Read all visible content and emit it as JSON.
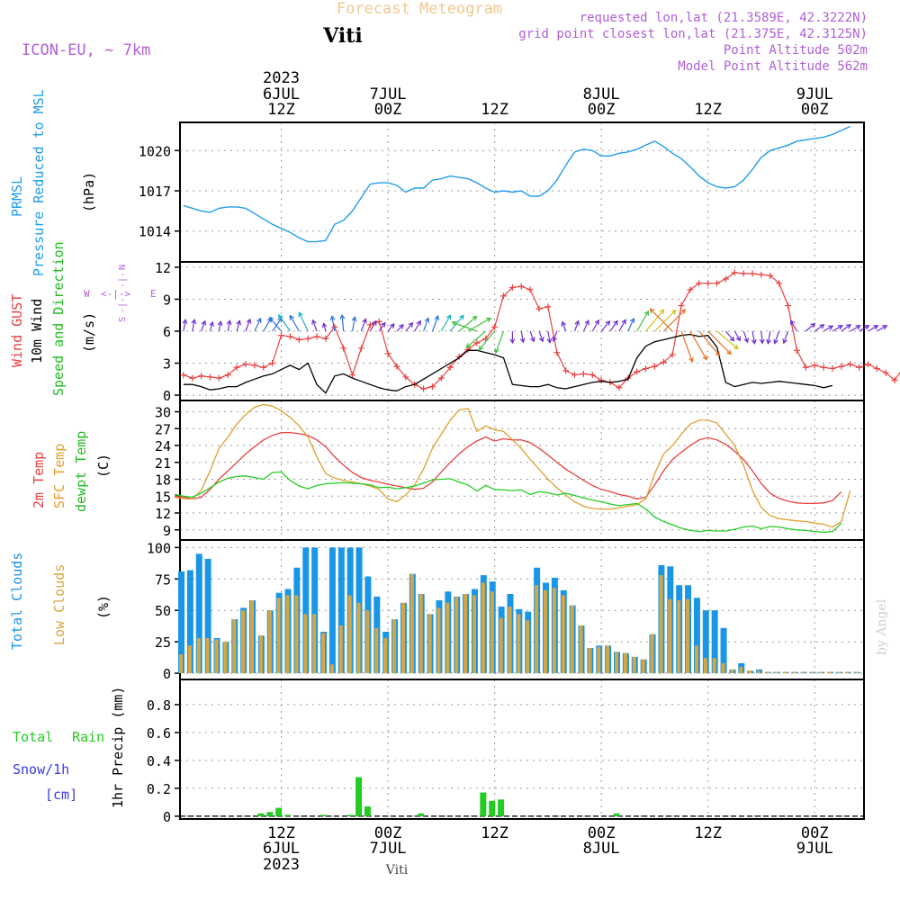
{
  "header": {
    "title": "Forecast Meteogram",
    "location": "Viti",
    "model": "ICON-EU, ~ 7km",
    "requested": "requested lon,lat (21.3589E, 42.3222N)",
    "gridpoint": "grid point closest lon,lat (21.375E, 42.3125N)",
    "point_alt": "Point Altitude 502m",
    "model_alt": "Model Point Altitude 562m",
    "watermark": "by Angel",
    "footer_location": "Viti"
  },
  "time_axis": {
    "top_year": "2023",
    "ticks": [
      {
        "hour": 12,
        "top": "6JUL",
        "label": "12Z"
      },
      {
        "hour": 24,
        "top": "7JUL",
        "label": "00Z"
      },
      {
        "hour": 36,
        "top": "",
        "label": "12Z"
      },
      {
        "hour": 48,
        "top": "8JUL",
        "label": "00Z"
      },
      {
        "hour": 60,
        "top": "",
        "label": "12Z"
      },
      {
        "hour": 72,
        "top": "9JUL",
        "label": "00Z"
      }
    ],
    "bottom_ticks": [
      {
        "hour": 12,
        "label": "12Z",
        "date": "6JUL",
        "year": "2023"
      },
      {
        "hour": 24,
        "label": "00Z",
        "date": "7JUL",
        "year": ""
      },
      {
        "hour": 36,
        "label": "12Z",
        "date": "",
        "year": ""
      },
      {
        "hour": 48,
        "label": "00Z",
        "date": "8JUL",
        "year": ""
      },
      {
        "hour": 60,
        "label": "12Z",
        "date": "",
        "year": ""
      },
      {
        "hour": 72,
        "label": "00Z",
        "date": "9JUL",
        "year": ""
      }
    ]
  },
  "colors": {
    "pressure": "#1f9ee8",
    "gust": "#e84040",
    "wind": "#000000",
    "wind_dir_label": "#22bb22",
    "temp2m": "#e84040",
    "sfc": "#e0a030",
    "dewpt": "#22cc22",
    "total_cloud": "#1a96e6",
    "low_cloud": "#d8a640",
    "rain": "#22cc22",
    "snow": "#3a3ae0",
    "header_purple": "#b060d8",
    "title_gold": "#f0c890"
  },
  "chart_data": [
    {
      "type": "line",
      "panel": "pressure",
      "title": "PRMSL Pressure Reduced to MSL",
      "ylabel": "(hPa)",
      "ylabel_lines": [
        "PRMSL",
        "Pressure Reduced to MSL"
      ],
      "unit": "(hPa)",
      "ylim": [
        1011.7,
        1022.1
      ],
      "yticks": [
        1014,
        1017,
        1020
      ],
      "x_start": 1,
      "x_step": 1,
      "series": [
        {
          "name": "PRMSL",
          "values": [
            1015.9,
            1015.7,
            1015.5,
            1015.4,
            1015.7,
            1015.8,
            1015.8,
            1015.7,
            1015.3,
            1014.9,
            1014.5,
            1014.2,
            1013.9,
            1013.5,
            1013.2,
            1013.2,
            1013.3,
            1014.5,
            1014.8,
            1015.5,
            1016.5,
            1017.5,
            1017.6,
            1017.6,
            1017.4,
            1016.9,
            1017.2,
            1017.2,
            1017.8,
            1017.9,
            1018.1,
            1018.0,
            1017.9,
            1017.6,
            1017.2,
            1016.9,
            1017.0,
            1016.9,
            1017.0,
            1016.6,
            1016.6,
            1017.0,
            1017.8,
            1018.9,
            1019.9,
            1020.1,
            1020.0,
            1019.6,
            1019.6,
            1019.8,
            1019.9,
            1020.1,
            1020.4,
            1020.7,
            1020.3,
            1019.8,
            1019.4,
            1018.8,
            1018.1,
            1017.6,
            1017.3,
            1017.2,
            1017.3,
            1017.8,
            1018.6,
            1019.5,
            1020.0,
            1020.2,
            1020.4,
            1020.7,
            1020.8,
            1020.9,
            1021.0,
            1021.2,
            1021.5,
            1021.8
          ]
        }
      ]
    },
    {
      "type": "line",
      "panel": "wind",
      "title": "Wind GUST / 10m Wind Speed and Direction",
      "ylabel": "(m/s)",
      "ylabel_lines": [
        "Wind GUST",
        "10m Wind",
        "Speed and Direction"
      ],
      "unit": "(m/s)",
      "compass": {
        "n": "N",
        "s": "S",
        "w": "W",
        "e": "E",
        "arrow_h": "<-|->",
        "arrow_v": "-|-"
      },
      "ylim": [
        -0.5,
        12.5
      ],
      "yticks": [
        0,
        3,
        6,
        9,
        12
      ],
      "x_start": 1,
      "x_step": 1,
      "series": [
        {
          "name": "Wind GUST",
          "values": [
            1.9,
            1.6,
            1.8,
            1.7,
            1.6,
            1.9,
            2.6,
            2.9,
            2.8,
            2.6,
            3.0,
            5.6,
            5.5,
            5.2,
            5.3,
            5.5,
            5.3,
            6.4,
            4.4,
            1.9,
            4.4,
            6.6,
            6.9,
            3.9,
            2.7,
            1.7,
            1.0,
            0.6,
            0.8,
            1.6,
            2.6,
            3.6,
            4.3,
            4.9,
            5.3,
            6.4,
            9.3,
            10.1,
            10.2,
            9.9,
            8.1,
            8.3,
            4.0,
            2.3,
            1.9,
            2.0,
            1.9,
            1.4,
            1.2,
            0.7,
            1.6,
            2.2,
            2.5,
            2.7,
            3.1,
            3.8,
            8.4,
            9.9,
            10.5,
            10.5,
            10.5,
            10.9,
            11.5,
            11.4,
            11.4,
            11.3,
            11.2,
            10.5,
            8.4,
            4.2,
            2.6,
            2.8,
            2.6,
            2.5,
            2.7,
            2.9,
            2.6,
            2.9,
            2.5,
            2.1,
            1.4,
            2.6
          ]
        },
        {
          "name": "10m Wind",
          "values": [
            1.0,
            1.0,
            0.8,
            0.5,
            0.6,
            0.8,
            0.8,
            1.2,
            1.5,
            1.8,
            2.0,
            2.4,
            2.8,
            2.4,
            3.0,
            1.0,
            0.2,
            1.8,
            2.0,
            1.6,
            1.3,
            1.0,
            0.7,
            0.5,
            0.4,
            0.8,
            1.0,
            1.5,
            2.0,
            2.5,
            3.0,
            3.5,
            4.2,
            4.2,
            4.0,
            3.8,
            3.5,
            1.0,
            0.9,
            0.8,
            0.8,
            1.0,
            0.7,
            0.6,
            0.8,
            1.0,
            1.2,
            1.3,
            1.2,
            1.3,
            1.5,
            3.5,
            4.6,
            5.0,
            5.2,
            5.4,
            5.6,
            5.7,
            5.5,
            5.6,
            4.5,
            1.2,
            0.8,
            1.0,
            1.2,
            1.1,
            1.2,
            1.3,
            1.2,
            1.1,
            1.0,
            0.9,
            0.7,
            0.9
          ]
        },
        {
          "name": "10m Wind direction (deg toward, 0=N)",
          "values": [
            10,
            10,
            20,
            15,
            10,
            10,
            15,
            20,
            25,
            30,
            35,
            320,
            325,
            330,
            335,
            340,
            345,
            350,
            355,
            10,
            20,
            30,
            35,
            40,
            45,
            40,
            30,
            20,
            20,
            30,
            40,
            50,
            60,
            290,
            230,
            220,
            200,
            180,
            170,
            160,
            160,
            170,
            200,
            340,
            20,
            25,
            30,
            40,
            35,
            30,
            25,
            30,
            40,
            45,
            45,
            315,
            160,
            150,
            140,
            135,
            130,
            140,
            150,
            160,
            170,
            175,
            190,
            200,
            200,
            330,
            50,
            55,
            60,
            60,
            55,
            60,
            60,
            60,
            60
          ]
        }
      ]
    },
    {
      "type": "line",
      "panel": "temperature",
      "title": "2m Temp / SFC Temp / dewpt Temp",
      "ylabel": "(C)",
      "ylabel_lines": [
        "2m Temp",
        "SFC Temp",
        "dewpt Temp"
      ],
      "unit": "(C)",
      "ylim": [
        7.2,
        32.0
      ],
      "yticks": [
        9,
        12,
        15,
        18,
        21,
        24,
        27,
        30
      ],
      "x_start": 0,
      "x_step": 1,
      "series": [
        {
          "name": "2m Temp",
          "values": [
            15.0,
            14.8,
            14.5,
            14.8,
            16.2,
            18.0,
            19.5,
            21.0,
            22.5,
            23.8,
            25.0,
            25.8,
            26.3,
            26.3,
            26.1,
            25.8,
            25.0,
            23.8,
            22.0,
            20.5,
            19.2,
            18.3,
            17.8,
            17.5,
            17.1,
            16.8,
            16.5,
            16.2,
            16.4,
            17.5,
            19.3,
            21.0,
            22.5,
            23.8,
            24.8,
            25.5,
            24.8,
            25.2,
            25.0,
            25.0,
            24.5,
            23.5,
            22.3,
            21.0,
            19.8,
            18.8,
            17.8,
            16.9,
            16.2,
            15.8,
            15.3,
            15.0,
            14.5,
            14.8,
            17.0,
            19.5,
            21.5,
            22.8,
            24.0,
            25.0,
            25.4,
            25.0,
            24.2,
            23.0,
            21.5,
            19.5,
            17.2,
            15.5,
            14.6,
            14.1,
            13.8,
            13.7,
            13.7,
            13.8,
            14.2,
            15.8
          ]
        },
        {
          "name": "SFC Temp",
          "values": [
            14.8,
            14.5,
            14.5,
            16.0,
            19.5,
            23.5,
            25.5,
            27.8,
            29.5,
            30.8,
            31.3,
            31.0,
            30.2,
            29.0,
            27.5,
            25.5,
            22.0,
            19.0,
            18.2,
            17.8,
            17.5,
            17.2,
            16.8,
            16.2,
            14.5,
            14.0,
            15.2,
            17.0,
            19.8,
            23.5,
            26.0,
            28.5,
            30.3,
            30.6,
            26.5,
            27.5,
            26.8,
            26.5,
            25.0,
            23.5,
            21.5,
            19.8,
            18.0,
            16.5,
            15.2,
            14.0,
            13.2,
            12.8,
            12.7,
            12.7,
            12.9,
            13.2,
            13.5,
            14.5,
            19.0,
            22.5,
            24.0,
            26.0,
            27.8,
            28.5,
            28.5,
            28.0,
            26.0,
            24.0,
            20.5,
            16.0,
            13.0,
            11.5,
            11.0,
            10.8,
            10.6,
            10.5,
            10.2,
            10.0,
            9.5,
            10.5,
            16.0
          ]
        },
        {
          "name": "dewpt Temp",
          "values": [
            15.3,
            15.0,
            14.8,
            15.5,
            16.5,
            17.5,
            18.2,
            18.5,
            18.6,
            18.3,
            18.0,
            19.2,
            19.3,
            17.8,
            16.8,
            16.3,
            16.9,
            17.2,
            17.3,
            17.4,
            17.3,
            17.2,
            17.0,
            16.5,
            16.6,
            16.3,
            16.5,
            16.8,
            17.3,
            17.9,
            18.0,
            18.1,
            17.5,
            17.0,
            15.9,
            16.9,
            16.2,
            16.1,
            16.0,
            16.1,
            15.3,
            15.8,
            15.6,
            15.2,
            15.5,
            15.1,
            14.7,
            14.3,
            14.0,
            13.6,
            13.3,
            13.5,
            13.7,
            12.7,
            11.3,
            10.5,
            9.9,
            9.3,
            8.9,
            8.7,
            8.9,
            8.8,
            8.8,
            9.1,
            9.5,
            9.7,
            9.2,
            9.6,
            9.5,
            9.2,
            9.0,
            8.9,
            8.7,
            8.6,
            8.7,
            10.2
          ]
        }
      ]
    },
    {
      "type": "bar",
      "panel": "clouds",
      "title": "Total Clouds / Low Clouds",
      "ylabel": "(%)",
      "ylabel_lines": [
        "Total Clouds",
        "Low Clouds"
      ],
      "unit": "(%)",
      "ylim": [
        -5,
        106
      ],
      "yticks": [
        0,
        25,
        50,
        75,
        100
      ],
      "x_start": 0,
      "x_step": 1,
      "series": [
        {
          "name": "Total Clouds",
          "values": [
            81,
            82,
            95,
            91,
            28,
            25,
            43,
            52,
            58,
            30,
            50,
            64,
            67,
            84,
            100,
            100,
            33,
            100,
            100,
            100,
            100,
            77,
            61,
            33,
            43,
            56,
            79,
            63,
            47,
            58,
            65,
            61,
            63,
            67,
            78,
            73,
            53,
            63,
            51,
            49,
            84,
            72,
            76,
            66,
            54,
            38,
            20,
            22,
            22,
            17,
            16,
            13,
            11,
            31,
            86,
            85,
            70,
            70,
            60,
            50,
            50,
            36,
            3,
            8,
            2,
            3,
            1,
            1,
            1,
            1,
            1,
            1,
            1,
            1,
            1,
            1,
            1,
            1
          ]
        },
        {
          "name": "Low Clouds",
          "values": [
            15,
            22,
            28,
            28,
            27,
            25,
            43,
            50,
            58,
            30,
            50,
            60,
            62,
            62,
            47,
            47,
            32,
            7,
            38,
            62,
            56,
            50,
            36,
            28,
            43,
            56,
            79,
            63,
            47,
            52,
            56,
            61,
            63,
            62,
            72,
            65,
            44,
            53,
            47,
            42,
            70,
            66,
            68,
            62,
            54,
            38,
            20,
            21,
            22,
            17,
            16,
            13,
            11,
            31,
            78,
            59,
            58,
            59,
            22,
            12,
            12,
            8,
            3,
            5,
            2,
            2,
            1,
            1,
            1,
            1,
            1,
            1,
            1,
            1,
            1,
            1,
            1,
            1
          ]
        }
      ]
    },
    {
      "type": "bar",
      "panel": "precip",
      "title": "1hr Precip (mm)",
      "ylabel": "1hr Precip (mm)",
      "ylabel_lines": [
        "Total",
        "Rain",
        "Snow/1h",
        "[cm]",
        "1hr Precip (mm)"
      ],
      "unit": "1hr Precip (mm)",
      "ylim": [
        -0.02,
        0.98
      ],
      "yticks": [
        0.0,
        0.2,
        0.4,
        0.6,
        0.8
      ],
      "ytick_labels": [
        "0",
        "0.2",
        "0.4",
        "0.6",
        "0.8"
      ],
      "x_start": 0,
      "x_step": 1,
      "series": [
        {
          "name": "Total Rain",
          "values": [
            0,
            0,
            0,
            0,
            0,
            0,
            0,
            0,
            0,
            0.02,
            0.03,
            0.06,
            0.01,
            0,
            0,
            0,
            0.01,
            0,
            0,
            0.01,
            0.28,
            0.07,
            0,
            0,
            0,
            0,
            0,
            0.02,
            0,
            0,
            0,
            0,
            0,
            0,
            0.17,
            0.11,
            0.12,
            0,
            0,
            0,
            0,
            0,
            0,
            0,
            0,
            0,
            0,
            0,
            0,
            0.02,
            0,
            0,
            0,
            0,
            0,
            0,
            0,
            0,
            0,
            0,
            0,
            0,
            0,
            0,
            0,
            0,
            0,
            0,
            0,
            0,
            0,
            0,
            0,
            0,
            0,
            0,
            0,
            0
          ]
        },
        {
          "name": "Snow/1h",
          "values": [
            0,
            0,
            0,
            0,
            0,
            0,
            0,
            0,
            0,
            0,
            0,
            0,
            0,
            0,
            0,
            0,
            0,
            0,
            0,
            0,
            0,
            0,
            0,
            0,
            0,
            0,
            0,
            0,
            0,
            0,
            0,
            0,
            0,
            0,
            0,
            0,
            0,
            0,
            0,
            0,
            0,
            0,
            0,
            0,
            0,
            0,
            0,
            0,
            0,
            0,
            0,
            0,
            0,
            0,
            0,
            0,
            0,
            0,
            0,
            0,
            0,
            0,
            0,
            0,
            0,
            0,
            0,
            0,
            0,
            0,
            0,
            0,
            0,
            0,
            0,
            0,
            0,
            0
          ]
        }
      ]
    }
  ]
}
